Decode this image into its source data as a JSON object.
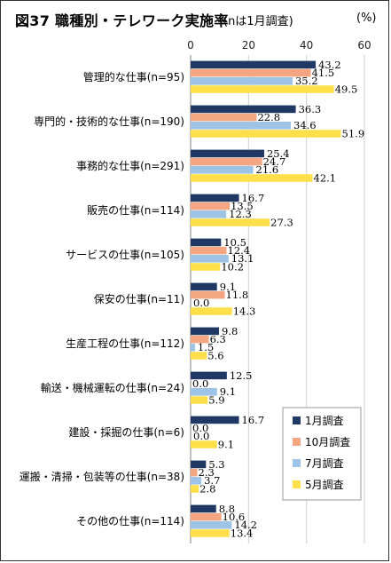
{
  "header": {
    "title": "図37 職種別・テレワーク実施率",
    "note": "(nは1月調査)",
    "unit": "(%)"
  },
  "chart_data": {
    "type": "bar",
    "orientation": "horizontal",
    "title": "図37 職種別・テレワーク実施率",
    "xlim": [
      0,
      60
    ],
    "ticks": [
      0,
      20,
      40,
      60
    ],
    "grid": true,
    "legend_position": "bottom-right",
    "categories": [
      "管理的な仕事(n=95)",
      "専門的・技術的な仕事(n=190)",
      "事務的な仕事(n=291)",
      "販売の仕事(n=114)",
      "サービスの仕事(n=105)",
      "保安の仕事(n=11)",
      "生産工程の仕事(n=112)",
      "輸送・機械運転の仕事(n=24)",
      "建設・採掘の仕事(n=6)",
      "運搬・清掃・包装等の仕事(n=38)",
      "その他の仕事(n=114)"
    ],
    "series": [
      {
        "name": "1月調査",
        "color": "#1F3864",
        "values": [
          43.2,
          36.3,
          25.4,
          16.7,
          10.5,
          9.1,
          9.8,
          12.5,
          16.7,
          5.3,
          8.8
        ]
      },
      {
        "name": "10月調査",
        "color": "#F4A582",
        "values": [
          41.5,
          22.8,
          24.7,
          13.5,
          12.4,
          11.8,
          6.3,
          0.0,
          0.0,
          2.3,
          10.6
        ]
      },
      {
        "name": "7月調査",
        "color": "#9DC3E6",
        "values": [
          35.2,
          34.6,
          21.6,
          12.3,
          13.1,
          0.0,
          1.5,
          9.1,
          0.0,
          3.7,
          14.2
        ]
      },
      {
        "name": "5月調査",
        "color": "#FFE04B",
        "values": [
          49.5,
          51.9,
          42.1,
          27.3,
          10.2,
          14.3,
          5.6,
          5.9,
          9.1,
          2.8,
          13.4
        ]
      }
    ]
  }
}
